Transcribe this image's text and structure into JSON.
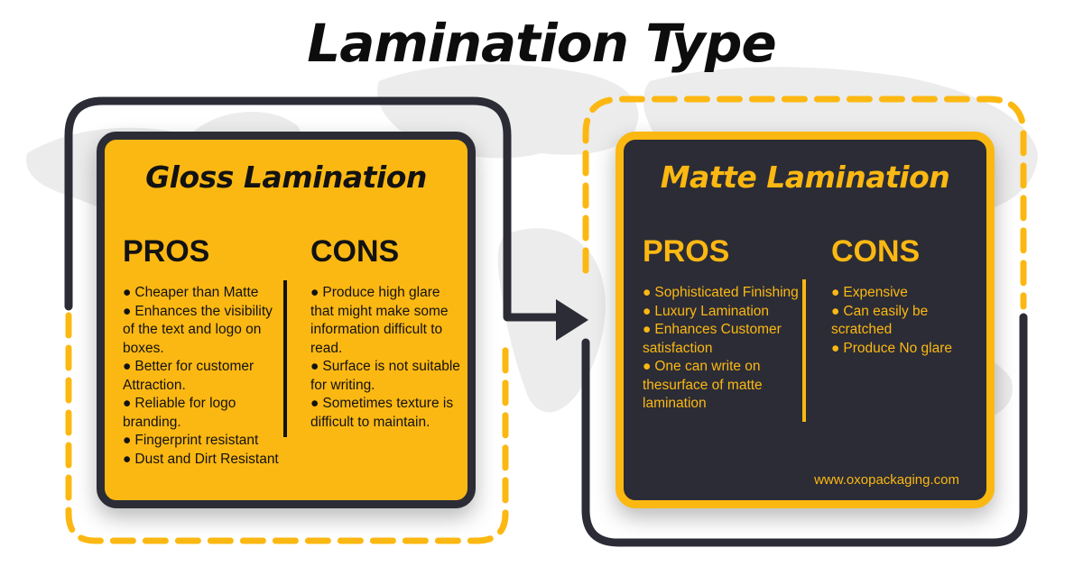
{
  "title": "Lamination Type",
  "colors": {
    "accent": "#fcb812",
    "dark": "#2b2c36",
    "text": "#121212"
  },
  "gloss": {
    "title": "Gloss Lamination",
    "pros_heading": "PROS",
    "cons_heading": "CONS",
    "pros": [
      "Cheaper than Matte",
      "Enhances the visibility of the text and logo on boxes.",
      "Better for customer Attraction.",
      "Reliable for logo branding.",
      "Fingerprint resistant",
      "Dust and Dirt Resistant"
    ],
    "cons": [
      "Produce high glare that might make some information difficult to read.",
      "Surface is not suitable for writing.",
      "Sometimes texture is difficult to maintain."
    ]
  },
  "matte": {
    "title": "Matte Lamination",
    "pros_heading": "PROS",
    "cons_heading": "CONS",
    "pros": [
      "Sophisticated Finishing",
      "Luxury Lamination",
      "Enhances Customer satisfaction",
      "One can write on thesurface of matte lamination"
    ],
    "cons": [
      "Expensive",
      "Can easily be scratched",
      "Produce No glare"
    ],
    "website": "www.oxopackaging.com"
  },
  "icons": {
    "bullet": "bullet-icon",
    "arrow": "arrow-right-icon"
  }
}
